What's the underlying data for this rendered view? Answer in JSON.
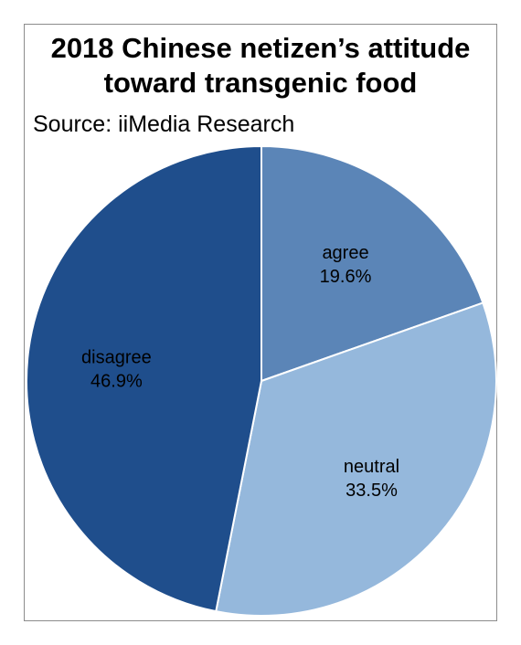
{
  "chart_data": {
    "type": "pie",
    "title": "2018 Chinese netizen’s attitude toward transgenic food",
    "title_lines": [
      "2018 Chinese netizen’s attitude",
      "toward transgenic food"
    ],
    "source": "Source: iiMedia Research",
    "slices": [
      {
        "label": "agree",
        "value": 19.6,
        "value_label": "19.6%",
        "color": "#5b85b7"
      },
      {
        "label": "neutral",
        "value": 33.5,
        "value_label": "33.5%",
        "color": "#95b8dc"
      },
      {
        "label": "disagree",
        "value": 46.9,
        "value_label": "46.9%",
        "color": "#1f4e8c"
      }
    ],
    "start_angle": "12 o'clock",
    "direction": "clockwise",
    "slice_border_color": "#ffffff"
  }
}
